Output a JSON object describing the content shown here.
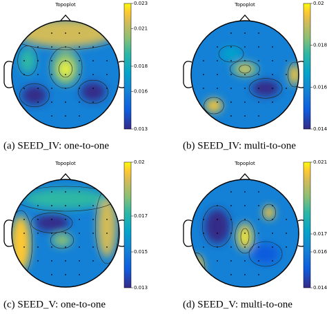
{
  "chart_data": [
    {
      "type": "topoplot",
      "title": "Topoplot",
      "caption": "(a) SEED_IV: one-to-one",
      "zlim": [
        0.013,
        0.023
      ],
      "zticks": [
        0.013,
        0.016,
        0.018,
        0.021,
        0.023
      ]
    },
    {
      "type": "topoplot",
      "title": "Topoplot",
      "caption": "(b) SEED_IV: multi-to-one",
      "zlim": [
        0.014,
        0.02
      ],
      "zticks": [
        0.014,
        0.016,
        0.018,
        0.02
      ]
    },
    {
      "type": "topoplot",
      "title": "Topoplot",
      "caption": "(c) SEED_V: one-to-one",
      "zlim": [
        0.013,
        0.02
      ],
      "zticks": [
        0.013,
        0.015,
        0.017,
        0.02
      ]
    },
    {
      "type": "topoplot",
      "title": "Topoplot",
      "caption": "(d) SEED_V: multi-to-one",
      "zlim": [
        0.014,
        0.021
      ],
      "zticks": [
        0.014,
        0.016,
        0.017,
        0.021
      ]
    }
  ]
}
